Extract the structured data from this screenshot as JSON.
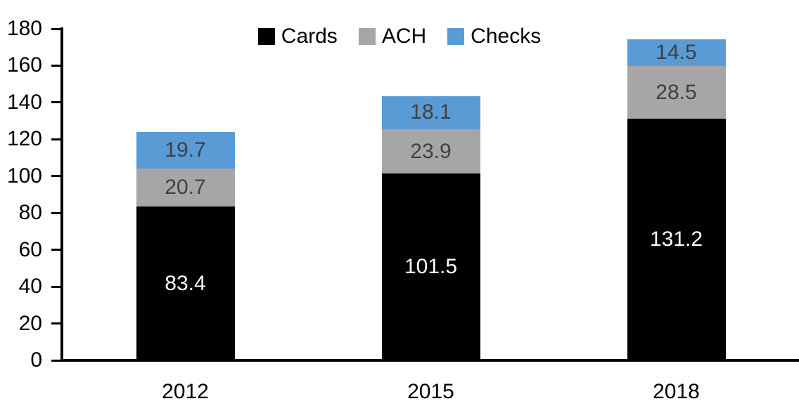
{
  "chart_data": {
    "type": "bar",
    "stacked": true,
    "title": "",
    "xlabel": "",
    "ylabel": "",
    "categories": [
      "2012",
      "2015",
      "2018"
    ],
    "series": [
      {
        "name": "Cards",
        "color": "#000000",
        "label_color": "#ffffff",
        "values": [
          83.4,
          101.5,
          131.2
        ]
      },
      {
        "name": "ACH",
        "color": "#a6a6a6",
        "label_color": "#404040",
        "values": [
          20.7,
          23.9,
          28.5
        ]
      },
      {
        "name": "Checks",
        "color": "#5b9bd5",
        "label_color": "#404040",
        "values": [
          19.7,
          18.1,
          14.5
        ]
      }
    ],
    "ylim": [
      0,
      180
    ],
    "yticks": [
      0,
      20,
      40,
      60,
      80,
      100,
      120,
      140,
      160,
      180
    ],
    "grid": false,
    "legend_position": "top",
    "axis_color": "#000000",
    "background_color": "#ffffff"
  }
}
